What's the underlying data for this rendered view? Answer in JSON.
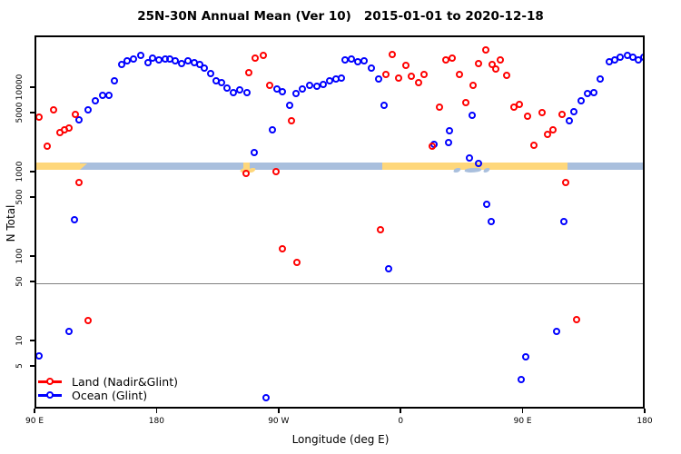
{
  "title": "25N-30N Annual Mean (Ver 10)   2015-01-01 to 2020-12-18",
  "axis": {
    "x_label": "Longitude (deg E)",
    "y_label": "N Total"
  },
  "legend": {
    "items": [
      {
        "label": "Land (Nadir&Glint)",
        "series": "land"
      },
      {
        "label": "Ocean (Glint)",
        "series": "ocean"
      }
    ]
  },
  "colors": {
    "land": "#ff0000",
    "ocean": "#0000ff",
    "band_land": "#fed77b",
    "band_ocean": "#a9bfdd",
    "ref_line": "#808080",
    "axis_line": "#000000"
  },
  "chart_data": {
    "type": "scatter",
    "title": "25N-30N Annual Mean (Ver 10)   2015-01-01 to 2020-12-18",
    "xlabel": "Longitude (deg E)",
    "ylabel": "N Total",
    "x_axis": {
      "unit": "degrees, axis runs eastward from 90E and wraps: 90E-180-90W-0-90E-180",
      "range_axis_deg": [
        90,
        540
      ],
      "ticks": [
        {
          "axis_deg": 90,
          "label": "90 E"
        },
        {
          "axis_deg": 180,
          "label": "180"
        },
        {
          "axis_deg": 270,
          "label": "90 W"
        },
        {
          "axis_deg": 360,
          "label": "0"
        },
        {
          "axis_deg": 450,
          "label": "90 E"
        },
        {
          "axis_deg": 540,
          "label": "180"
        }
      ]
    },
    "y_axis": {
      "scale": "log10",
      "ticks": [
        5,
        10,
        50,
        100,
        500,
        1000,
        5000,
        10000
      ],
      "range": [
        1.4,
        48000
      ]
    },
    "reference_line_y": 50,
    "surface_band": {
      "y_center": 1250,
      "segments": [
        {
          "from_deg": 90,
          "to_deg": 122,
          "surface": "land"
        },
        {
          "from_deg": 122,
          "to_deg": 242.7,
          "surface": "ocean"
        },
        {
          "from_deg": 242.7,
          "to_deg": 247.4,
          "surface": "land"
        },
        {
          "from_deg": 247.4,
          "to_deg": 345.1,
          "surface": "ocean"
        },
        {
          "from_deg": 345.1,
          "to_deg": 481.8,
          "surface": "land"
        },
        {
          "from_deg": 481.8,
          "to_deg": 540,
          "surface": "ocean"
        }
      ],
      "accents": [
        {
          "deg": 122.3,
          "surface": "land",
          "shape": "taper",
          "w_deg": 6
        },
        {
          "deg": 240.8,
          "surface": "land",
          "shape": "blob",
          "w_deg": 7
        },
        {
          "deg": 246.5,
          "surface": "land",
          "shape": "blob",
          "w_deg": 5
        },
        {
          "deg": 398,
          "surface": "ocean",
          "shape": "blob",
          "w_deg": 5
        },
        {
          "deg": 406,
          "surface": "ocean",
          "shape": "blob",
          "w_deg": 12
        },
        {
          "deg": 420,
          "surface": "ocean",
          "shape": "blob",
          "w_deg": 4
        },
        {
          "deg": 461.5,
          "surface": "land",
          "shape": "taper",
          "w_deg": 5
        }
      ]
    },
    "series": [
      {
        "name": "Land (Nadir&Glint)",
        "color": "#ff0000",
        "points": [
          [
            92,
            4550
          ],
          [
            98.7,
            2080
          ],
          [
            103.2,
            5600
          ],
          [
            107.6,
            2970
          ],
          [
            111.4,
            3270
          ],
          [
            114.3,
            3360
          ],
          [
            119.3,
            4950
          ],
          [
            121.9,
            760
          ],
          [
            128.8,
            17.7
          ],
          [
            244.7,
            975
          ],
          [
            246.9,
            15500
          ],
          [
            252,
            23000
          ],
          [
            257.6,
            24900
          ],
          [
            262.1,
            10900
          ],
          [
            267.2,
            1030
          ],
          [
            272.1,
            126
          ],
          [
            278.4,
            4190
          ],
          [
            282.6,
            87
          ],
          [
            344.2,
            211
          ],
          [
            348.4,
            14800
          ],
          [
            352.5,
            25400
          ],
          [
            357.4,
            13300
          ],
          [
            363.2,
            18600
          ],
          [
            367,
            13900
          ],
          [
            372.1,
            11800
          ],
          [
            376.4,
            14500
          ],
          [
            382.6,
            2090
          ],
          [
            387.8,
            5970
          ],
          [
            392.6,
            21500
          ],
          [
            396.9,
            22900
          ],
          [
            402.2,
            14600
          ],
          [
            406.9,
            6760
          ],
          [
            412.4,
            10900
          ],
          [
            416.5,
            19800
          ],
          [
            421.6,
            28700
          ],
          [
            426.8,
            19000
          ],
          [
            429,
            17100
          ],
          [
            432.8,
            21900
          ],
          [
            437.3,
            14200
          ],
          [
            442.4,
            5970
          ],
          [
            446.9,
            6500
          ],
          [
            452.9,
            4670
          ],
          [
            457.4,
            2100
          ],
          [
            463,
            5200
          ],
          [
            467.5,
            2850
          ],
          [
            471.5,
            3270
          ],
          [
            478.1,
            4950
          ],
          [
            480.8,
            760
          ],
          [
            488.6,
            18.3
          ]
        ]
      },
      {
        "name": "Ocean (Glint)",
        "color": "#0000ff",
        "points": [
          [
            92,
            6.8
          ],
          [
            114.3,
            13.3
          ],
          [
            118.6,
            282
          ],
          [
            121.9,
            4230
          ],
          [
            128.2,
            5510
          ],
          [
            133.7,
            7230
          ],
          [
            138.9,
            8320
          ],
          [
            143.8,
            8320
          ],
          [
            147.8,
            12200
          ],
          [
            153.1,
            19300
          ],
          [
            157.6,
            21000
          ],
          [
            162.1,
            22400
          ],
          [
            167.2,
            24800
          ],
          [
            172.4,
            20100
          ],
          [
            176.2,
            23000
          ],
          [
            180.6,
            21900
          ],
          [
            185.1,
            22400
          ],
          [
            188.9,
            22400
          ],
          [
            192.9,
            21000
          ],
          [
            197.8,
            19500
          ],
          [
            202.3,
            21000
          ],
          [
            206.7,
            20100
          ],
          [
            210.7,
            19300
          ],
          [
            214.1,
            17200
          ],
          [
            218.6,
            15100
          ],
          [
            223,
            12200
          ],
          [
            226.8,
            11800
          ],
          [
            230.8,
            10200
          ],
          [
            235.8,
            8870
          ],
          [
            240.3,
            9500
          ],
          [
            245.7,
            9000
          ],
          [
            250.9,
            1740
          ],
          [
            259.9,
            2.2
          ],
          [
            264.3,
            3220
          ],
          [
            267.6,
            9800
          ],
          [
            272.1,
            9260
          ],
          [
            277.1,
            6340
          ],
          [
            282.1,
            8810
          ],
          [
            286.6,
            9800
          ],
          [
            292.2,
            10900
          ],
          [
            297.1,
            10700
          ],
          [
            302.2,
            11100
          ],
          [
            306.7,
            12200
          ],
          [
            311.2,
            12900
          ],
          [
            315,
            13300
          ],
          [
            317.9,
            21500
          ],
          [
            323,
            22400
          ],
          [
            327.5,
            20600
          ],
          [
            332.4,
            21000
          ],
          [
            337.1,
            17600
          ],
          [
            343.1,
            12800
          ],
          [
            346.8,
            6310
          ],
          [
            350.3,
            74
          ],
          [
            383.7,
            2160
          ],
          [
            394.5,
            2290
          ],
          [
            394.9,
            3190
          ],
          [
            409.8,
            1510
          ],
          [
            411.5,
            4750
          ],
          [
            416.5,
            1290
          ],
          [
            422.3,
            427
          ],
          [
            426.1,
            266
          ],
          [
            447.7,
            3.6
          ],
          [
            451.3,
            6.7
          ],
          [
            474.1,
            13.3
          ],
          [
            479.6,
            267
          ],
          [
            483.5,
            4120
          ],
          [
            487,
            5370
          ],
          [
            492.4,
            7230
          ],
          [
            496.9,
            8670
          ],
          [
            501.3,
            8870
          ],
          [
            506.5,
            12900
          ],
          [
            512.7,
            20500
          ],
          [
            516.7,
            21900
          ],
          [
            521.2,
            23700
          ],
          [
            526.1,
            24900
          ],
          [
            530.6,
            23700
          ],
          [
            534.6,
            21500
          ],
          [
            538.6,
            23200
          ]
        ]
      }
    ]
  }
}
